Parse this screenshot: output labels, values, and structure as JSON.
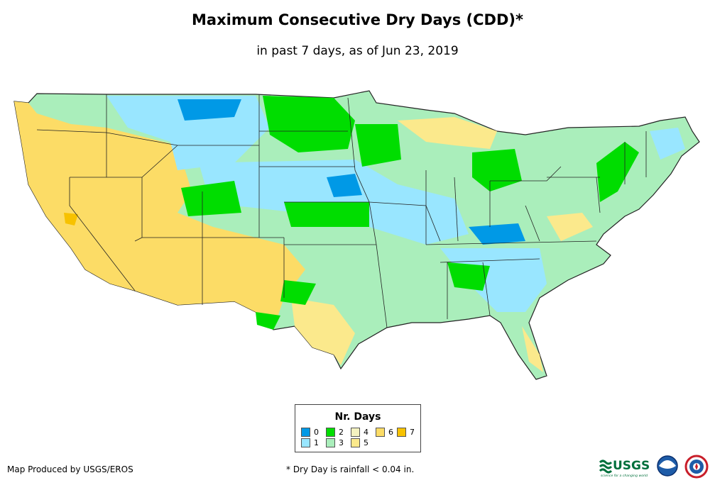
{
  "title": "Maximum Consecutive Dry Days (CDD)*",
  "subtitle": "in past 7 days, as of Jun 23, 2019",
  "legend": {
    "title": "Nr. Days",
    "items": [
      {
        "label": "0",
        "color": "#0099e6"
      },
      {
        "label": "1",
        "color": "#99e6ff"
      },
      {
        "label": "2",
        "color": "#00dd00"
      },
      {
        "label": "3",
        "color": "#aaeebb"
      },
      {
        "label": "4",
        "color": "#f4f2c0"
      },
      {
        "label": "5",
        "color": "#fbe98c"
      },
      {
        "label": "6",
        "color": "#fcdc66"
      },
      {
        "label": "7",
        "color": "#f7c200"
      }
    ]
  },
  "credit": "Map Produced by USGS/EROS",
  "footnote": "* Dry Day is rainfall < 0.04 in.",
  "logos": {
    "usgs": "USGS",
    "usgs_tagline": "science for a changing world"
  }
}
